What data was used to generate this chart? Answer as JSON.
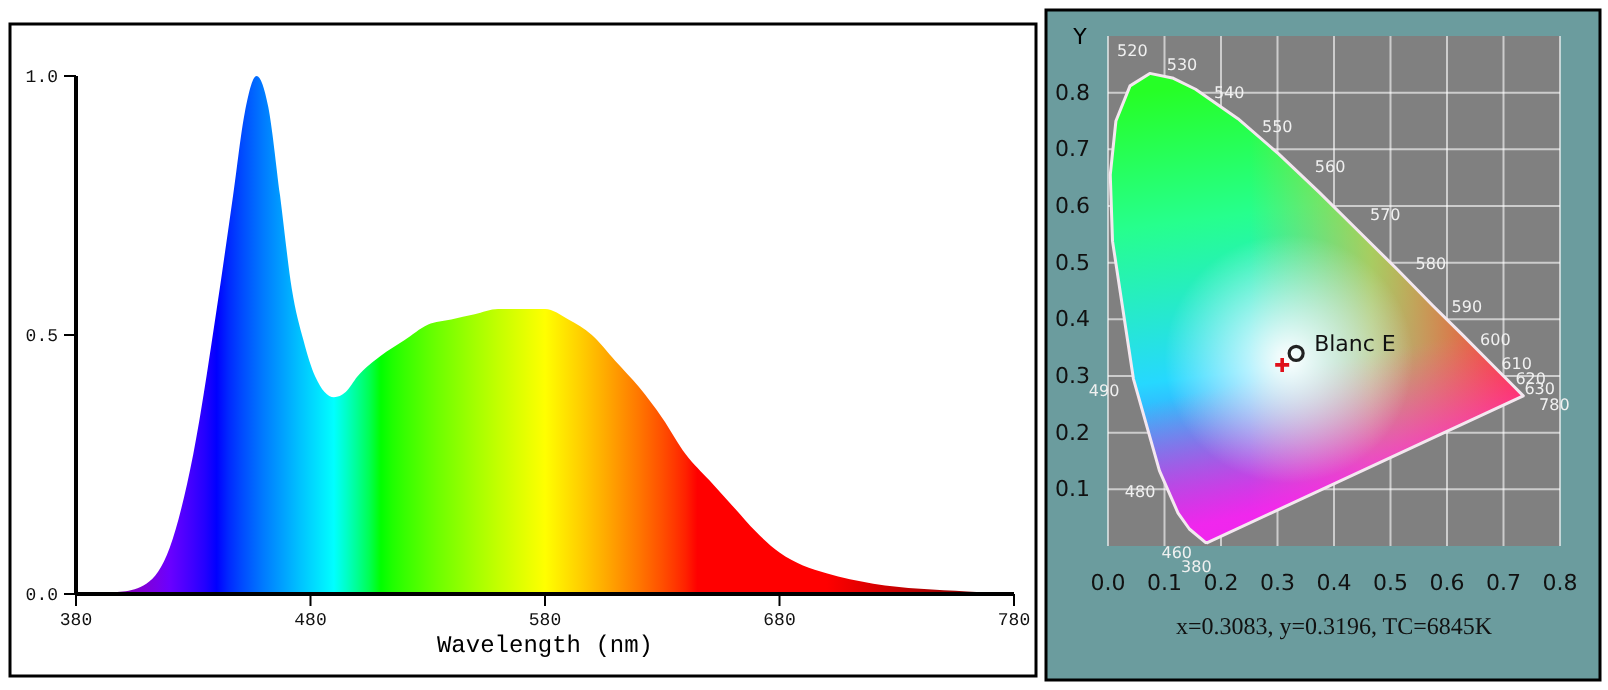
{
  "chart_data": [
    {
      "type": "area",
      "xlabel": "Wavelength (nm)",
      "x": [
        380,
        400,
        410,
        420,
        430,
        440,
        447,
        452,
        457,
        462,
        467,
        472,
        477,
        482,
        490,
        495,
        500,
        510,
        520,
        530,
        540,
        550,
        560,
        570,
        580,
        590,
        600,
        610,
        620,
        630,
        640,
        650,
        660,
        670,
        680,
        690,
        700,
        720,
        740,
        760,
        780
      ],
      "values": [
        0,
        0.005,
        0.02,
        0.09,
        0.27,
        0.55,
        0.77,
        0.93,
        1.0,
        0.94,
        0.77,
        0.59,
        0.49,
        0.42,
        0.38,
        0.39,
        0.42,
        0.46,
        0.49,
        0.52,
        0.53,
        0.54,
        0.55,
        0.55,
        0.55,
        0.53,
        0.5,
        0.45,
        0.4,
        0.34,
        0.27,
        0.22,
        0.17,
        0.12,
        0.08,
        0.055,
        0.04,
        0.02,
        0.01,
        0.005,
        0
      ],
      "xlim": [
        380,
        780
      ],
      "xticks": [
        380,
        480,
        580,
        680,
        780
      ],
      "ylim": [
        0,
        1
      ],
      "yticks": [
        {
          "value": 0,
          "label": "0.0"
        },
        {
          "value": 0.5,
          "label": "0.5"
        },
        {
          "value": 1,
          "label": "1.0"
        }
      ]
    },
    {
      "type": "area",
      "ylabel": "Y",
      "grid": true,
      "xlim": [
        0,
        0.8
      ],
      "xticks": [
        {
          "value": 0,
          "label": "0.0"
        },
        0.1,
        0.2,
        0.3,
        0.4,
        0.5,
        0.6,
        0.7,
        0.8
      ],
      "ylim": [
        0,
        0.9
      ],
      "yticks": [
        0.1,
        0.2,
        0.3,
        0.4,
        0.5,
        0.6,
        0.7,
        0.8
      ],
      "series": [
        {
          "color": "#f4e8f0",
          "x": [
            0.174,
            0.144,
            0.124,
            0.091,
            0.045,
            0.008,
            0.004,
            0.014,
            0.039,
            0.074,
            0.114,
            0.155,
            0.23,
            0.302,
            0.373,
            0.444,
            0.513,
            0.575,
            0.627,
            0.666,
            0.692,
            0.708,
            0.719,
            0.735,
            0.174
          ],
          "values": [
            0.005,
            0.03,
            0.058,
            0.133,
            0.295,
            0.538,
            0.655,
            0.75,
            0.812,
            0.834,
            0.826,
            0.806,
            0.754,
            0.692,
            0.625,
            0.555,
            0.487,
            0.424,
            0.373,
            0.334,
            0.308,
            0.292,
            0.281,
            0.265,
            0.005
          ]
        },
        {
          "type": "scatter",
          "name": "Blanc E",
          "marker": "circle",
          "color": "#222222",
          "x": [
            0.333
          ],
          "values": [
            0.34
          ]
        },
        {
          "type": "scatter",
          "marker": "cross",
          "color": "#e0101a",
          "x": [
            0.3083
          ],
          "values": [
            0.3196
          ]
        }
      ],
      "annotations": [
        {
          "text": "520",
          "x": 0.0743,
          "y": 0.8338
        },
        {
          "text": "530",
          "x": 0.1547,
          "y": 0.8059
        },
        {
          "text": "540",
          "x": 0.2296,
          "y": 0.7543
        },
        {
          "text": "550",
          "x": 0.3016,
          "y": 0.6923
        },
        {
          "text": "560",
          "x": 0.3731,
          "y": 0.6245
        },
        {
          "text": "570",
          "x": 0.4441,
          "y": 0.5547
        },
        {
          "text": "580",
          "x": 0.5125,
          "y": 0.4866
        },
        {
          "text": "590",
          "x": 0.5752,
          "y": 0.4242
        },
        {
          "text": "600",
          "x": 0.627,
          "y": 0.3725
        },
        {
          "text": "610",
          "x": 0.6658,
          "y": 0.334
        },
        {
          "text": "620",
          "x": 0.6915,
          "y": 0.3083
        },
        {
          "text": "630",
          "x": 0.7079,
          "y": 0.292
        },
        {
          "text": "780",
          "x": 0.7347,
          "y": 0.2653
        },
        {
          "text": "490",
          "x": 0.0454,
          "y": 0.295
        },
        {
          "text": "480",
          "x": 0.0913,
          "y": 0.1327
        },
        {
          "text": "460",
          "x": 0.144,
          "y": 0.0297
        },
        {
          "text": "380",
          "x": 0.1741,
          "y": 0.005
        },
        "x=0.3083, y=0.3196, TC=6845K"
      ]
    }
  ]
}
